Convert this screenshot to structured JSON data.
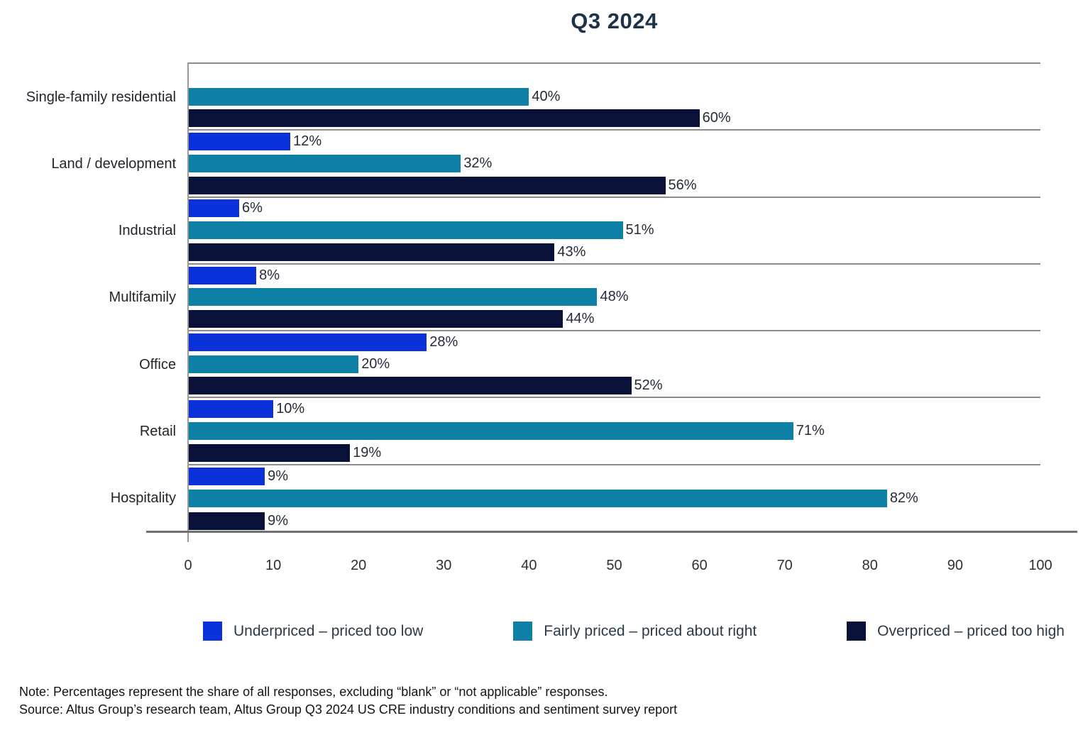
{
  "title": "Q3 2024",
  "chart_data": {
    "type": "bar",
    "orientation": "horizontal",
    "title": "Q3 2024",
    "categories": [
      "Single-family residential",
      "Land / development",
      "Industrial",
      "Multifamily",
      "Office",
      "Retail",
      "Hospitality"
    ],
    "series": [
      {
        "name": "Underpriced – priced too low",
        "color": "#0a31da",
        "values": [
          null,
          12,
          6,
          8,
          28,
          10,
          9
        ]
      },
      {
        "name": "Fairly priced – priced about right",
        "color": "#0e80a5",
        "values": [
          40,
          32,
          51,
          48,
          20,
          71,
          82
        ]
      },
      {
        "name": "Overpriced – priced too high",
        "color": "#0a1138",
        "values": [
          60,
          56,
          43,
          44,
          52,
          19,
          9
        ]
      }
    ],
    "value_suffix": "%",
    "xlabel": "",
    "ylabel": "",
    "xlim": [
      0,
      100
    ],
    "xticks": [
      0,
      10,
      20,
      30,
      40,
      50,
      60,
      70,
      80,
      90,
      100
    ],
    "grid": "off",
    "legend_position": "bottom",
    "data_labels": "outside-end"
  },
  "notes": {
    "note": "Note: Percentages represent the share of all responses, excluding “blank” or “not applicable” responses.",
    "source": "Source: Altus Group’s research team, Altus Group Q3 2024 US CRE industry conditions and sentiment survey report"
  }
}
